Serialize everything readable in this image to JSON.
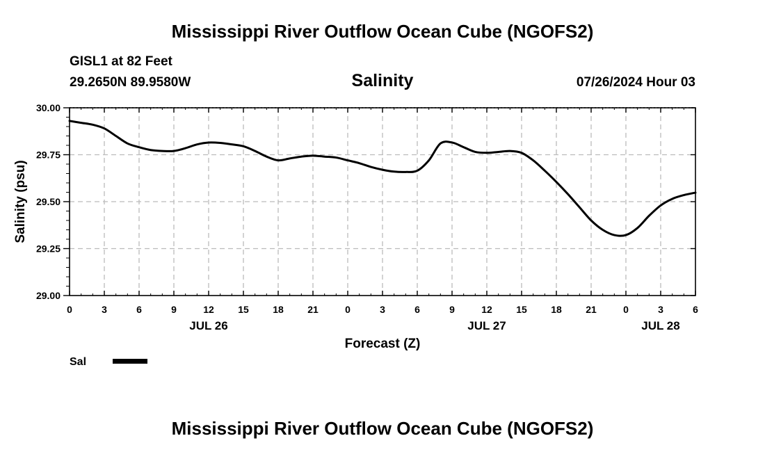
{
  "header": {
    "title": "Mississippi River Outflow Ocean Cube (NGOFS2)",
    "station": "GISL1 at 82 Feet",
    "coordinates": "29.2650N  89.9580W",
    "timestamp": "07/26/2024 Hour 03"
  },
  "footer": {
    "title": "Mississippi River Outflow Ocean Cube (NGOFS2)"
  },
  "colors": {
    "line": "#000000",
    "grid": "#bbbbbb",
    "frame": "#000000"
  },
  "chart_data": {
    "type": "line",
    "title": "Salinity",
    "xlabel": "Forecast (Z)",
    "ylabel": "Salinity (psu)",
    "xlim": [
      0,
      54
    ],
    "ylim": [
      29.0,
      30.0
    ],
    "grid": true,
    "legend_position": "bottom-left",
    "x_ticks": [
      {
        "value": 0,
        "label": "0"
      },
      {
        "value": 3,
        "label": "3"
      },
      {
        "value": 6,
        "label": "6"
      },
      {
        "value": 9,
        "label": "9"
      },
      {
        "value": 12,
        "label": "12"
      },
      {
        "value": 15,
        "label": "15"
      },
      {
        "value": 18,
        "label": "18"
      },
      {
        "value": 21,
        "label": "21"
      },
      {
        "value": 24,
        "label": "0"
      },
      {
        "value": 27,
        "label": "3"
      },
      {
        "value": 30,
        "label": "6"
      },
      {
        "value": 33,
        "label": "9"
      },
      {
        "value": 36,
        "label": "12"
      },
      {
        "value": 39,
        "label": "15"
      },
      {
        "value": 42,
        "label": "18"
      },
      {
        "value": 45,
        "label": "21"
      },
      {
        "value": 48,
        "label": "0"
      },
      {
        "value": 51,
        "label": "3"
      },
      {
        "value": 54,
        "label": "6"
      }
    ],
    "day_labels": [
      {
        "value": 12,
        "label": "JUL 26"
      },
      {
        "value": 36,
        "label": "JUL 27"
      },
      {
        "value": 51,
        "label": "JUL 28"
      }
    ],
    "y_ticks": [
      {
        "value": 29.0,
        "label": "29.00"
      },
      {
        "value": 29.25,
        "label": "29.25"
      },
      {
        "value": 29.5,
        "label": "29.50"
      },
      {
        "value": 29.75,
        "label": "29.75"
      },
      {
        "value": 30.0,
        "label": "30.00"
      }
    ],
    "series": [
      {
        "name": "Sal",
        "x": [
          0,
          1,
          2,
          3,
          4,
          5,
          6,
          7,
          8,
          9,
          10,
          11,
          12,
          13,
          14,
          15,
          16,
          17,
          18,
          19,
          20,
          21,
          22,
          23,
          24,
          25,
          26,
          27,
          28,
          29,
          30,
          31,
          32,
          33,
          34,
          35,
          36,
          37,
          38,
          39,
          40,
          41,
          42,
          43,
          44,
          45,
          46,
          47,
          48,
          49,
          50,
          51,
          52,
          53,
          54
        ],
        "values": [
          29.93,
          29.92,
          29.91,
          29.89,
          29.85,
          29.81,
          29.79,
          29.775,
          29.77,
          29.77,
          29.785,
          29.805,
          29.815,
          29.813,
          29.805,
          29.795,
          29.77,
          29.74,
          29.72,
          29.73,
          29.74,
          29.745,
          29.74,
          29.735,
          29.72,
          29.705,
          29.685,
          29.67,
          29.66,
          29.658,
          29.665,
          29.72,
          29.81,
          29.815,
          29.79,
          29.765,
          29.76,
          29.765,
          29.77,
          29.76,
          29.72,
          29.665,
          29.605,
          29.54,
          29.47,
          29.4,
          29.35,
          29.322,
          29.322,
          29.36,
          29.425,
          29.48,
          29.515,
          29.535,
          29.548
        ]
      }
    ]
  }
}
